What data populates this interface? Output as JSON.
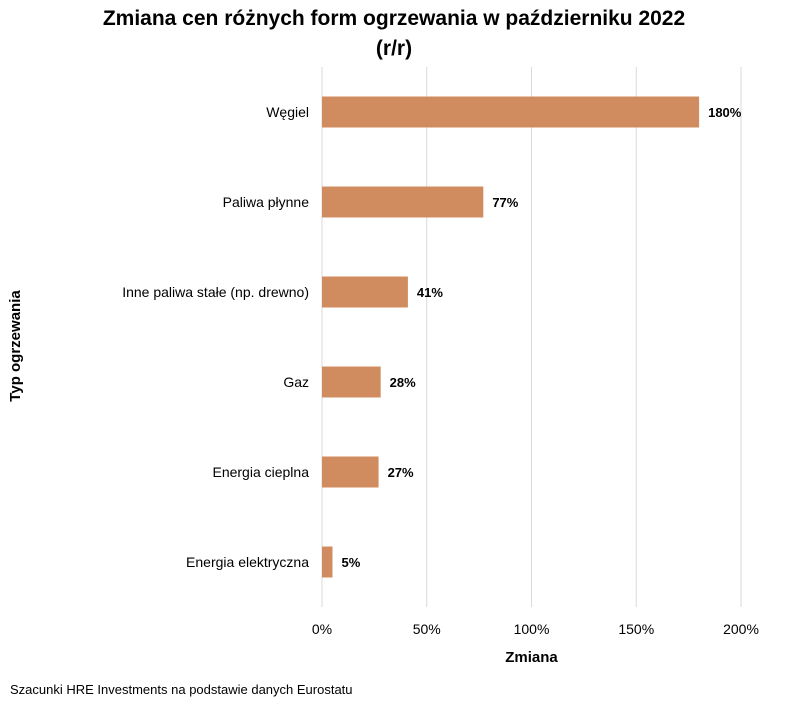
{
  "chart_data": {
    "type": "bar",
    "orientation": "horizontal",
    "title_line1": "Zmiana cen różnych form ogrzewania w październiku 2022",
    "title_line2": "(r/r)",
    "xlabel": "Zmiana",
    "ylabel": "Typ ogrzewania",
    "categories": [
      "Węgiel",
      "Paliwa płynne",
      "Inne paliwa stałe (np. drewno)",
      "Gaz",
      "Energia cieplna",
      "Energia elektryczna"
    ],
    "values": [
      180,
      77,
      41,
      28,
      27,
      5
    ],
    "data_labels": [
      "180%",
      "77%",
      "41%",
      "28%",
      "27%",
      "5%"
    ],
    "xlim": [
      0,
      200
    ],
    "xticks": [
      0,
      50,
      100,
      150,
      200
    ],
    "xtick_labels": [
      "0%",
      "50%",
      "100%",
      "150%",
      "200%"
    ],
    "grid": "vertical",
    "bar_color": "#d08c5f",
    "grid_color": "#d9d9d9"
  },
  "footer": {
    "source": "Szacunki HRE Investments na podstawie danych Eurostatu"
  }
}
